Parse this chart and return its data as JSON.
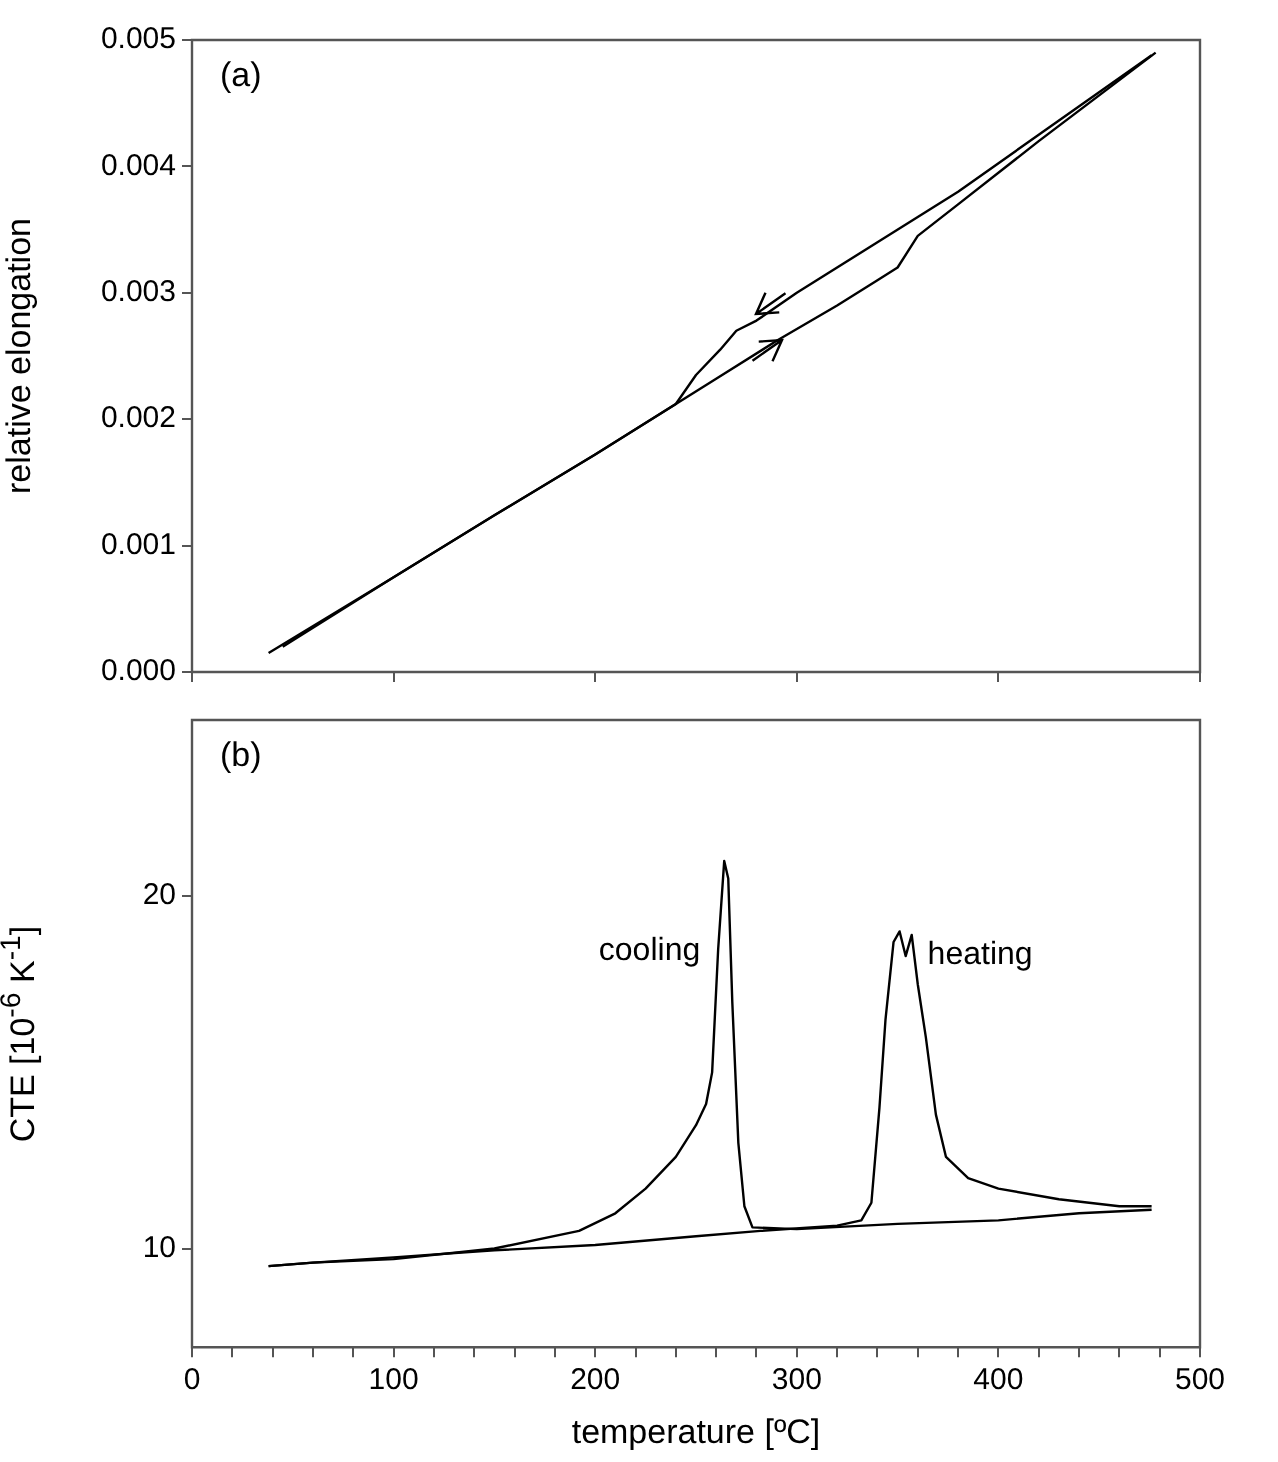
{
  "chart_data": [
    {
      "type": "line",
      "annotations": [
        "(a)"
      ],
      "ylabel": "relative elongation",
      "xlim": [
        0,
        500
      ],
      "xticks": [
        0,
        100,
        200,
        300,
        400,
        500
      ],
      "ylim": [
        0,
        0.005
      ],
      "yticks": [
        {
          "value": 0,
          "label": "0.000"
        },
        {
          "value": 0.001,
          "label": "0.001"
        },
        {
          "value": 0.002,
          "label": "0.002"
        },
        {
          "value": 0.003,
          "label": "0.003"
        },
        {
          "value": 0.004,
          "label": "0.004"
        },
        {
          "value": 0.005,
          "label": "0.005"
        }
      ],
      "tick_labels": "y",
      "grid": false,
      "legend": false,
      "marker": "none",
      "series": [
        {
          "color": "#000000",
          "x": [
            38,
            100,
            150,
            200,
            240,
            260,
            290,
            320,
            340,
            350,
            360,
            380,
            420,
            478
          ],
          "values": [
            0.00015,
            0.00075,
            0.00124,
            0.00172,
            0.00212,
            0.00232,
            0.00262,
            0.0029,
            0.0031,
            0.0032,
            0.00345,
            0.0037,
            0.0042,
            0.0049
          ]
        },
        {
          "color": "#000000",
          "x": [
            45,
            100,
            150,
            200,
            240,
            250,
            262,
            270,
            280,
            300,
            340,
            380,
            420,
            476
          ],
          "values": [
            0.0002,
            0.00075,
            0.00124,
            0.00172,
            0.00212,
            0.00235,
            0.00255,
            0.0027,
            0.00278,
            0.003,
            0.0034,
            0.0038,
            0.00425,
            0.00488
          ]
        }
      ]
    },
    {
      "type": "line",
      "annotations": [
        "(b)"
      ],
      "xlabel": "temperature [ºC]",
      "ylabel": "CTE [10$^{-6}$ K$^{-1}$]",
      "xlim": [
        0,
        500
      ],
      "xticks": [
        0,
        {
          "value": 20,
          "label": null
        },
        {
          "value": 40,
          "label": null
        },
        {
          "value": 60,
          "label": null
        },
        {
          "value": 80,
          "label": null
        },
        100,
        {
          "value": 120,
          "label": null
        },
        {
          "value": 140,
          "label": null
        },
        {
          "value": 160,
          "label": null
        },
        {
          "value": 180,
          "label": null
        },
        200,
        {
          "value": 220,
          "label": null
        },
        {
          "value": 240,
          "label": null
        },
        {
          "value": 260,
          "label": null
        },
        {
          "value": 280,
          "label": null
        },
        300,
        {
          "value": 320,
          "label": null
        },
        {
          "value": 340,
          "label": null
        },
        {
          "value": 360,
          "label": null
        },
        {
          "value": 380,
          "label": null
        },
        400,
        {
          "value": 420,
          "label": null
        },
        {
          "value": 440,
          "label": null
        },
        {
          "value": 460,
          "label": null
        },
        {
          "value": 480,
          "label": null
        },
        500
      ],
      "ylim": [
        7.2,
        25
      ],
      "yticks": [
        10,
        20
      ],
      "grid": false,
      "legend": false,
      "marker": "none",
      "series": [
        {
          "name": "cooling",
          "color": "#000000",
          "x": [
            38,
            60,
            100,
            150,
            192,
            210,
            225,
            240,
            250,
            255,
            258,
            261,
            264,
            266,
            268,
            271,
            274,
            278,
            300,
            350,
            400,
            440,
            476
          ],
          "values": [
            9.5,
            9.6,
            9.7,
            10.0,
            10.5,
            11.0,
            11.7,
            12.6,
            13.5,
            14.1,
            15,
            18.5,
            21.0,
            20.5,
            17,
            13,
            11.2,
            10.6,
            10.55,
            10.7,
            10.8,
            11.0,
            11.1
          ]
        },
        {
          "name": "heating",
          "color": "#000000",
          "x": [
            38,
            60,
            100,
            150,
            200,
            250,
            282,
            320,
            332,
            337,
            341,
            344,
            348,
            351,
            354,
            357,
            360,
            364,
            369,
            374,
            385,
            400,
            430,
            460,
            476
          ],
          "values": [
            9.5,
            9.6,
            9.75,
            9.95,
            10.1,
            10.35,
            10.5,
            10.65,
            10.8,
            11.3,
            14,
            16.5,
            18.7,
            19.0,
            18.3,
            18.9,
            17.5,
            16,
            13.8,
            12.6,
            12.0,
            11.7,
            11.4,
            11.2,
            11.2
          ]
        }
      ]
    }
  ]
}
